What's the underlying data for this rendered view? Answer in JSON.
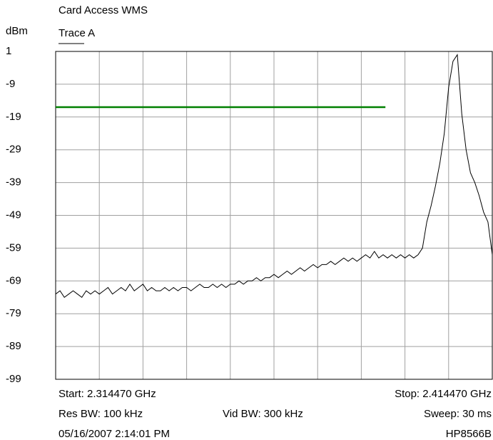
{
  "chart_data": {
    "type": "line",
    "title": "Card Access WMS",
    "ylabel": "dBm",
    "xlim": [
      2.31447,
      2.41447
    ],
    "xticks": [
      2.31447,
      2.32447,
      2.33447,
      2.34447,
      2.35447,
      2.36447,
      2.37447,
      2.38447,
      2.39447,
      2.40447,
      2.41447
    ],
    "ylim": [
      -99,
      1
    ],
    "yticks": [
      1,
      -9,
      -19,
      -29,
      -39,
      -49,
      -59,
      -69,
      -79,
      -89,
      -99
    ],
    "grid": true,
    "series": [
      {
        "name": "Trace A",
        "color": "#000000",
        "x": [
          2.31447,
          2.31547,
          2.31647,
          2.31747,
          2.31847,
          2.31947,
          2.32047,
          2.32147,
          2.32247,
          2.32347,
          2.32447,
          2.32547,
          2.32647,
          2.32747,
          2.32847,
          2.32947,
          2.33047,
          2.33147,
          2.33247,
          2.33347,
          2.33447,
          2.33547,
          2.33647,
          2.33747,
          2.33847,
          2.33947,
          2.34047,
          2.34147,
          2.34247,
          2.34347,
          2.34447,
          2.34547,
          2.34647,
          2.34747,
          2.34847,
          2.34947,
          2.35047,
          2.35147,
          2.35247,
          2.35347,
          2.35447,
          2.35547,
          2.35647,
          2.35747,
          2.35847,
          2.35947,
          2.36047,
          2.36147,
          2.36247,
          2.36347,
          2.36447,
          2.36547,
          2.36647,
          2.36747,
          2.36847,
          2.36947,
          2.37047,
          2.37147,
          2.37247,
          2.37347,
          2.37447,
          2.37547,
          2.37647,
          2.37747,
          2.37847,
          2.37947,
          2.38047,
          2.38147,
          2.38247,
          2.38347,
          2.38447,
          2.38547,
          2.38647,
          2.38747,
          2.38847,
          2.38947,
          2.39047,
          2.39147,
          2.39247,
          2.39347,
          2.39447,
          2.39547,
          2.39647,
          2.39747,
          2.39847,
          2.39947,
          2.40047,
          2.40147,
          2.40247,
          2.40347,
          2.40447,
          2.40547,
          2.40647,
          2.40747,
          2.40847,
          2.40947,
          2.41047,
          2.41147,
          2.41247,
          2.41347,
          2.41447
        ],
        "values": [
          -73,
          -72,
          -74,
          -73,
          -72,
          -73,
          -74,
          -72,
          -73,
          -72,
          -73,
          -72,
          -71,
          -73,
          -72,
          -71,
          -72,
          -70,
          -72,
          -71,
          -70,
          -72,
          -71,
          -72,
          -72,
          -71,
          -72,
          -71,
          -72,
          -71,
          -71,
          -72,
          -71,
          -70,
          -71,
          -71,
          -70,
          -71,
          -70,
          -71,
          -70,
          -70,
          -69,
          -70,
          -69,
          -69,
          -68,
          -69,
          -68,
          -68,
          -67,
          -68,
          -67,
          -66,
          -67,
          -66,
          -65,
          -66,
          -65,
          -64,
          -65,
          -64,
          -64,
          -63,
          -64,
          -63,
          -62,
          -63,
          -62,
          -63,
          -62,
          -61,
          -62,
          -60,
          -62,
          -61,
          -62,
          -61,
          -62,
          -61,
          -62,
          -61,
          -62,
          -61,
          -59,
          -51,
          -46,
          -40,
          -33,
          -24,
          -10,
          -2,
          0,
          -18,
          -29,
          -36,
          -39,
          -43,
          -48,
          -51,
          -61
        ]
      }
    ],
    "limit_line": {
      "color": "#008000",
      "x": [
        2.31447,
        2.39
      ],
      "values": [
        -16,
        -16
      ]
    },
    "annotations": {
      "start": "Start: 2.314470 GHz",
      "stop": "Stop: 2.414470 GHz",
      "res_bw": "Res BW: 100 kHz",
      "vid_bw": "Vid BW: 300 kHz",
      "sweep": "Sweep: 30 ms",
      "timestamp": "05/16/2007 2:14:01 PM",
      "instrument": "HP8566B"
    }
  }
}
